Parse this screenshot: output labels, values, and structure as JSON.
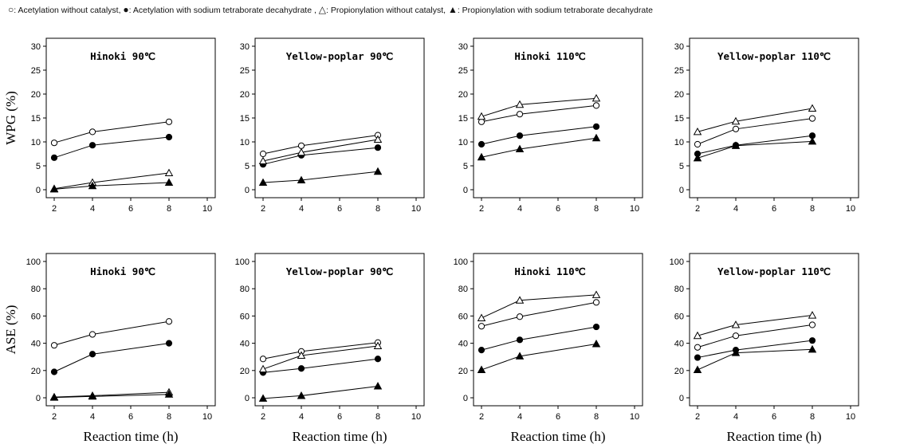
{
  "legend": {
    "entries": [
      {
        "symbol": "○",
        "label": ": Acetylation without catalyst,"
      },
      {
        "symbol": "●",
        "label": ": Acetylation with sodium tetraborate decahydrate ,"
      },
      {
        "symbol": "△",
        "label": ": Propionylation without catalyst,"
      },
      {
        "symbol": "▲",
        "label": ": Propionylation with sodium tetraborate decahydrate"
      }
    ]
  },
  "row_labels": {
    "wpg": "WPG (%)",
    "ase": "ASE (%)"
  },
  "xlabel": "Reaction time (h)",
  "chart_data": [
    {
      "type": "line",
      "metric": "WPG",
      "title": "Hinoki 90℃",
      "xlim": [
        2,
        10
      ],
      "ylim": [
        0,
        30
      ],
      "xticks": [
        2,
        4,
        6,
        8,
        10
      ],
      "yticks": [
        0,
        5,
        10,
        15,
        20,
        25,
        30
      ],
      "x": [
        2,
        4,
        8
      ],
      "series": [
        {
          "marker": "open-circle",
          "values": [
            9.8,
            12.1,
            14.2
          ]
        },
        {
          "marker": "filled-circle",
          "values": [
            6.7,
            9.3,
            11.0
          ]
        },
        {
          "marker": "open-triangle",
          "values": [
            0.2,
            1.5,
            3.5
          ]
        },
        {
          "marker": "filled-triangle",
          "values": [
            0.1,
            0.8,
            1.5
          ]
        }
      ]
    },
    {
      "type": "line",
      "metric": "WPG",
      "title": "Yellow-poplar 90℃",
      "xlim": [
        2,
        10
      ],
      "ylim": [
        0,
        30
      ],
      "xticks": [
        2,
        4,
        6,
        8,
        10
      ],
      "yticks": [
        0,
        5,
        10,
        15,
        20,
        25,
        30
      ],
      "x": [
        2,
        4,
        8
      ],
      "series": [
        {
          "marker": "open-circle",
          "values": [
            7.5,
            9.2,
            11.4
          ]
        },
        {
          "marker": "filled-circle",
          "values": [
            5.3,
            7.2,
            8.8
          ]
        },
        {
          "marker": "open-triangle",
          "values": [
            6.0,
            7.8,
            10.5
          ]
        },
        {
          "marker": "filled-triangle",
          "values": [
            1.5,
            2.0,
            3.8
          ]
        }
      ]
    },
    {
      "type": "line",
      "metric": "WPG",
      "title": "Hinoki 110℃",
      "xlim": [
        2,
        10
      ],
      "ylim": [
        0,
        30
      ],
      "xticks": [
        2,
        4,
        6,
        8,
        10
      ],
      "yticks": [
        0,
        5,
        10,
        15,
        20,
        25,
        30
      ],
      "x": [
        2,
        4,
        8
      ],
      "series": [
        {
          "marker": "open-circle",
          "values": [
            14.2,
            15.8,
            17.6
          ]
        },
        {
          "marker": "filled-circle",
          "values": [
            9.5,
            11.3,
            13.2
          ]
        },
        {
          "marker": "open-triangle",
          "values": [
            15.3,
            17.8,
            19.1
          ]
        },
        {
          "marker": "filled-triangle",
          "values": [
            6.8,
            8.5,
            10.8
          ]
        }
      ]
    },
    {
      "type": "line",
      "metric": "WPG",
      "title": "Yellow-poplar 110℃",
      "xlim": [
        2,
        10
      ],
      "ylim": [
        0,
        30
      ],
      "xticks": [
        2,
        4,
        6,
        8,
        10
      ],
      "yticks": [
        0,
        5,
        10,
        15,
        20,
        25,
        30
      ],
      "x": [
        2,
        4,
        8
      ],
      "series": [
        {
          "marker": "open-circle",
          "values": [
            9.5,
            12.7,
            14.9
          ]
        },
        {
          "marker": "filled-circle",
          "values": [
            7.5,
            9.3,
            11.3
          ]
        },
        {
          "marker": "open-triangle",
          "values": [
            12.1,
            14.3,
            17.0
          ]
        },
        {
          "marker": "filled-triangle",
          "values": [
            6.6,
            9.2,
            10.1
          ]
        }
      ]
    },
    {
      "type": "line",
      "metric": "ASE",
      "title": "Hinoki 90℃",
      "xlim": [
        2,
        10
      ],
      "ylim": [
        0,
        100
      ],
      "xticks": [
        2,
        4,
        6,
        8,
        10
      ],
      "yticks": [
        0,
        20,
        40,
        60,
        80,
        100
      ],
      "x": [
        2,
        4,
        8
      ],
      "series": [
        {
          "marker": "open-circle",
          "values": [
            38.5,
            46.5,
            56.0
          ]
        },
        {
          "marker": "filled-circle",
          "values": [
            19.0,
            32.0,
            40.0
          ]
        },
        {
          "marker": "open-triangle",
          "values": [
            0.5,
            1.5,
            4.0
          ]
        },
        {
          "marker": "filled-triangle",
          "values": [
            0.2,
            1.0,
            2.5
          ]
        }
      ]
    },
    {
      "type": "line",
      "metric": "ASE",
      "title": "Yellow-poplar 90℃",
      "xlim": [
        2,
        10
      ],
      "ylim": [
        0,
        100
      ],
      "xticks": [
        2,
        4,
        6,
        8,
        10
      ],
      "yticks": [
        0,
        20,
        40,
        60,
        80,
        100
      ],
      "x": [
        2,
        4,
        8
      ],
      "series": [
        {
          "marker": "open-circle",
          "values": [
            28.5,
            34.0,
            40.5
          ]
        },
        {
          "marker": "filled-circle",
          "values": [
            18.5,
            21.5,
            28.5
          ]
        },
        {
          "marker": "open-triangle",
          "values": [
            21.0,
            31.0,
            38.0
          ]
        },
        {
          "marker": "filled-triangle",
          "values": [
            -0.5,
            1.5,
            8.5
          ]
        }
      ]
    },
    {
      "type": "line",
      "metric": "ASE",
      "title": "Hinoki 110℃",
      "xlim": [
        2,
        10
      ],
      "ylim": [
        0,
        100
      ],
      "xticks": [
        2,
        4,
        6,
        8,
        10
      ],
      "yticks": [
        0,
        20,
        40,
        60,
        80,
        100
      ],
      "x": [
        2,
        4,
        8
      ],
      "series": [
        {
          "marker": "open-circle",
          "values": [
            52.5,
            59.5,
            70.0
          ]
        },
        {
          "marker": "filled-circle",
          "values": [
            35.0,
            42.5,
            52.0
          ]
        },
        {
          "marker": "open-triangle",
          "values": [
            58.5,
            71.5,
            75.5
          ]
        },
        {
          "marker": "filled-triangle",
          "values": [
            20.5,
            30.5,
            39.5
          ]
        }
      ]
    },
    {
      "type": "line",
      "metric": "ASE",
      "title": "Yellow-poplar 110℃",
      "xlim": [
        2,
        10
      ],
      "ylim": [
        0,
        100
      ],
      "xticks": [
        2,
        4,
        6,
        8,
        10
      ],
      "yticks": [
        0,
        20,
        40,
        60,
        80,
        100
      ],
      "x": [
        2,
        4,
        8
      ],
      "series": [
        {
          "marker": "open-circle",
          "values": [
            37.0,
            45.5,
            53.5
          ]
        },
        {
          "marker": "filled-circle",
          "values": [
            29.5,
            35.0,
            42.0
          ]
        },
        {
          "marker": "open-triangle",
          "values": [
            45.5,
            53.5,
            60.5
          ]
        },
        {
          "marker": "filled-triangle",
          "values": [
            20.5,
            33.0,
            35.5
          ]
        }
      ]
    }
  ]
}
